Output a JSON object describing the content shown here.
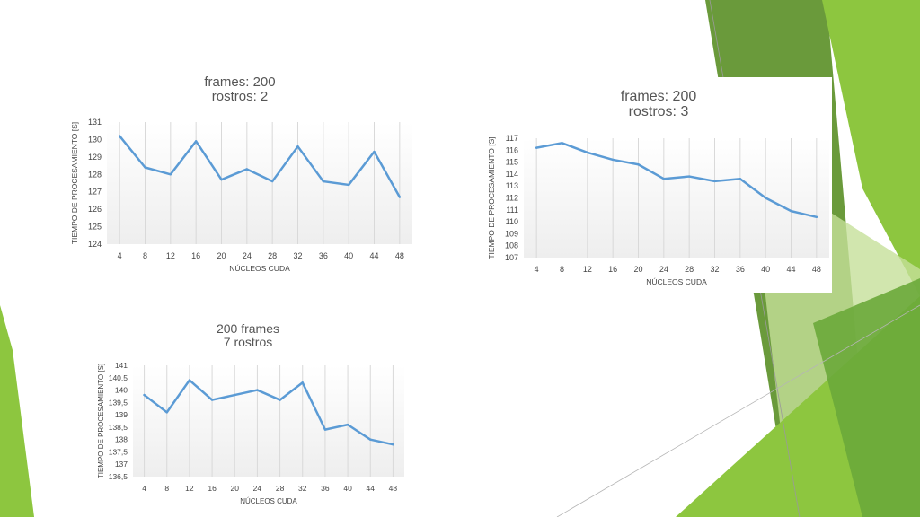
{
  "colors": {
    "line": "#5b9bd5",
    "plot_bg_top": "#ffffff",
    "plot_bg_bottom": "#eeeeee",
    "gridline": "#d9d9d9",
    "axis_text": "#444444",
    "accent_green_dark": "#6a9a3b",
    "accent_green": "#8dc63f",
    "accent_green_light": "#c5e09a"
  },
  "chart_data": [
    {
      "type": "line",
      "title_lines": [
        "frames: 200",
        "rostros: 2"
      ],
      "xlabel": "NÚCLEOS CUDA",
      "ylabel": "TIEMPO DE PROCESAMIENTO [S]",
      "x": [
        4,
        8,
        12,
        16,
        20,
        24,
        28,
        32,
        36,
        40,
        44,
        48
      ],
      "values": [
        130.2,
        128.4,
        128.0,
        129.9,
        127.7,
        128.3,
        127.6,
        129.6,
        127.6,
        127.4,
        129.3,
        126.7
      ],
      "ylim": [
        124,
        131
      ],
      "yticks": [
        "124",
        "125",
        "126",
        "127",
        "128",
        "129",
        "130",
        "131"
      ],
      "grid": "vertical"
    },
    {
      "type": "line",
      "title_lines": [
        "frames: 200",
        "rostros: 3"
      ],
      "xlabel": "NÚCLEOS CUDA",
      "ylabel": "TIEMPO DE PROCESAMIENTO [S]",
      "x": [
        4,
        8,
        12,
        16,
        20,
        24,
        28,
        32,
        36,
        40,
        44,
        48
      ],
      "values": [
        116.2,
        116.6,
        115.8,
        115.2,
        114.8,
        113.6,
        113.8,
        113.4,
        113.6,
        112.0,
        110.9,
        110.4
      ],
      "ylim": [
        107,
        117
      ],
      "yticks": [
        "107",
        "108",
        "109",
        "110",
        "111",
        "112",
        "113",
        "114",
        "115",
        "116",
        "117"
      ],
      "grid": "vertical"
    },
    {
      "type": "line",
      "title_lines": [
        "200 frames",
        "7 rostros"
      ],
      "xlabel": "NÚCLEOS CUDA",
      "ylabel": "TIEMPO DE PROCESAMIENTO [S]",
      "x": [
        4,
        8,
        12,
        16,
        20,
        24,
        28,
        32,
        36,
        40,
        44,
        48
      ],
      "values": [
        139.8,
        139.1,
        140.4,
        139.6,
        139.8,
        140.0,
        139.6,
        140.3,
        138.4,
        138.6,
        138.0,
        137.8
      ],
      "ylim": [
        136.5,
        141
      ],
      "yticks": [
        "136,5",
        "137",
        "137,5",
        "138",
        "138,5",
        "139",
        "139,5",
        "140",
        "140,5",
        "141"
      ],
      "grid": "vertical"
    }
  ]
}
